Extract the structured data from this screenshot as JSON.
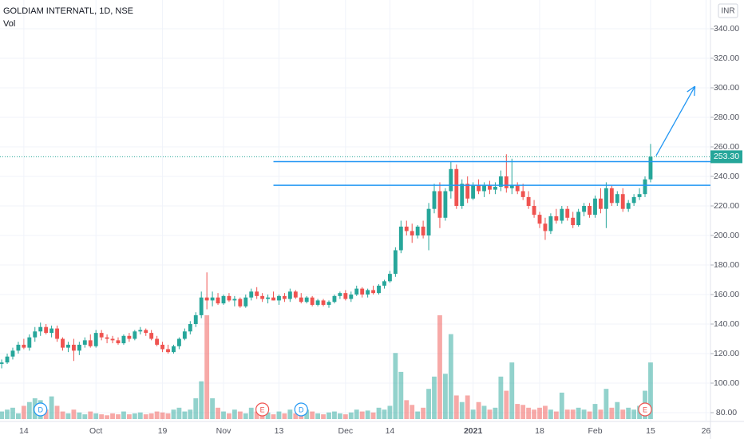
{
  "chart_data": {
    "type": "candlestick",
    "title": "GOLDIAM INTERNATL, 1D, NSE",
    "volume_label": "Vol",
    "currency": "INR",
    "up_color": "#26a69a",
    "down_color": "#ef5350",
    "grid": true,
    "ylim": [
      74,
      348
    ],
    "yticks": [
      {
        "value": 80,
        "label": "80.00"
      },
      {
        "value": 100,
        "label": "100.00"
      },
      {
        "value": 120,
        "label": "120.00"
      },
      {
        "value": 140,
        "label": "140.00"
      },
      {
        "value": 160,
        "label": "160.00"
      },
      {
        "value": 180,
        "label": "180.00"
      },
      {
        "value": 200,
        "label": "200.00"
      },
      {
        "value": 220,
        "label": "220.00"
      },
      {
        "value": 240,
        "label": "240.00"
      },
      {
        "value": 260,
        "label": "260.00"
      },
      {
        "value": 280,
        "label": "280.00"
      },
      {
        "value": 300,
        "label": "300.00"
      },
      {
        "value": 320,
        "label": "320.00"
      },
      {
        "value": 340,
        "label": "340.00"
      }
    ],
    "xlim": [
      -0.3,
      127.8
    ],
    "xticks": [
      {
        "value": 4,
        "label": "14"
      },
      {
        "value": 17,
        "label": "Oct"
      },
      {
        "value": 29,
        "label": "19"
      },
      {
        "value": 40,
        "label": "Nov"
      },
      {
        "value": 50,
        "label": "13"
      },
      {
        "value": 62,
        "label": "Dec"
      },
      {
        "value": 70,
        "label": "14"
      },
      {
        "value": 85,
        "label": "2021"
      },
      {
        "value": 97,
        "label": "18"
      },
      {
        "value": 107,
        "label": "Feb"
      },
      {
        "value": 117,
        "label": "15"
      },
      {
        "value": 127,
        "label": "26"
      }
    ],
    "open": [
      113,
      114,
      118,
      122,
      126,
      124,
      131,
      135,
      138,
      134,
      137,
      130,
      124,
      126,
      122,
      126,
      129,
      125,
      134,
      131,
      130,
      129,
      127,
      132,
      130,
      135,
      136,
      134,
      130,
      126,
      123,
      121,
      125,
      130,
      135,
      140,
      146,
      158,
      156,
      158,
      154,
      159,
      156,
      157,
      152,
      158,
      162,
      159,
      157,
      158,
      156,
      159,
      157,
      162,
      158,
      155,
      158,
      153,
      156,
      153,
      155,
      159,
      161,
      157,
      160,
      164,
      160,
      163,
      161,
      166,
      169,
      174,
      190,
      206,
      203,
      200,
      206,
      200,
      218,
      230,
      212,
      230,
      245,
      220,
      235,
      225,
      234,
      230,
      234,
      231,
      233,
      240,
      232,
      234,
      230,
      226,
      220,
      214,
      208,
      203,
      213,
      210,
      218,
      212,
      207,
      216,
      220,
      214,
      225,
      218,
      232,
      222,
      228,
      218,
      222,
      226,
      228,
      238
    ],
    "high": [
      116,
      120,
      124,
      128,
      130,
      133,
      138,
      141,
      140,
      139,
      139,
      131,
      128,
      130,
      128,
      131,
      133,
      136,
      136,
      133,
      132,
      131,
      133,
      134,
      136,
      138,
      137,
      136,
      132,
      128,
      126,
      126,
      131,
      137,
      142,
      148,
      162,
      175,
      162,
      161,
      160,
      161,
      159,
      158,
      160,
      164,
      165,
      161,
      160,
      162,
      160,
      161,
      164,
      163,
      161,
      159,
      159,
      157,
      157,
      156,
      160,
      162,
      163,
      162,
      166,
      165,
      164,
      166,
      167,
      170,
      176,
      192,
      210,
      210,
      208,
      207,
      210,
      222,
      235,
      236,
      232,
      250,
      248,
      238,
      240,
      236,
      238,
      236,
      237,
      236,
      244,
      255,
      252,
      236,
      235,
      230,
      224,
      216,
      212,
      215,
      218,
      220,
      220,
      216,
      218,
      222,
      222,
      227,
      232,
      236,
      234,
      230,
      232,
      224,
      228,
      232,
      240,
      262
    ],
    "low": [
      110,
      113,
      116,
      120,
      123,
      122,
      128,
      132,
      133,
      131,
      128,
      122,
      121,
      115,
      119,
      124,
      124,
      124,
      129,
      127,
      127,
      126,
      126,
      128,
      129,
      133,
      132,
      129,
      125,
      121,
      120,
      120,
      123,
      129,
      133,
      138,
      144,
      150,
      152,
      153,
      153,
      155,
      152,
      151,
      151,
      156,
      157,
      155,
      154,
      156,
      153,
      155,
      155,
      157,
      154,
      154,
      152,
      152,
      152,
      151,
      154,
      157,
      156,
      155,
      159,
      158,
      158,
      160,
      160,
      164,
      168,
      172,
      188,
      200,
      195,
      198,
      198,
      190,
      215,
      205,
      210,
      225,
      218,
      218,
      222,
      224,
      228,
      226,
      228,
      228,
      230,
      229,
      228,
      228,
      224,
      218,
      212,
      205,
      197,
      201,
      208,
      208,
      210,
      205,
      206,
      213,
      212,
      212,
      215,
      205,
      220,
      220,
      216,
      216,
      220,
      224,
      226,
      236
    ],
    "close": [
      114,
      118,
      122,
      126,
      124,
      131,
      135,
      138,
      134,
      137,
      130,
      124,
      126,
      122,
      126,
      129,
      125,
      134,
      131,
      130,
      129,
      127,
      132,
      130,
      135,
      136,
      134,
      130,
      126,
      123,
      121,
      125,
      130,
      135,
      140,
      146,
      158,
      156,
      158,
      154,
      159,
      156,
      157,
      152,
      158,
      162,
      159,
      157,
      158,
      156,
      159,
      157,
      162,
      158,
      155,
      158,
      153,
      156,
      153,
      155,
      159,
      161,
      157,
      160,
      164,
      160,
      163,
      161,
      166,
      169,
      174,
      190,
      206,
      203,
      200,
      206,
      200,
      218,
      230,
      212,
      230,
      245,
      220,
      235,
      225,
      234,
      230,
      234,
      231,
      233,
      240,
      232,
      234,
      230,
      226,
      220,
      214,
      208,
      203,
      213,
      210,
      218,
      212,
      207,
      216,
      220,
      214,
      225,
      218,
      232,
      222,
      228,
      218,
      222,
      226,
      228,
      238,
      253.3
    ],
    "volume": [
      8,
      10,
      12,
      6,
      14,
      18,
      22,
      20,
      10,
      24,
      14,
      8,
      6,
      10,
      7,
      5,
      8,
      6,
      5,
      4,
      6,
      5,
      8,
      5,
      6,
      7,
      5,
      6,
      8,
      7,
      6,
      10,
      12,
      8,
      10,
      22,
      40,
      110,
      22,
      12,
      8,
      6,
      10,
      8,
      6,
      12,
      8,
      6,
      7,
      5,
      8,
      6,
      10,
      6,
      5,
      10,
      8,
      6,
      5,
      7,
      8,
      6,
      5,
      7,
      10,
      8,
      9,
      7,
      12,
      10,
      14,
      70,
      50,
      20,
      15,
      8,
      12,
      32,
      45,
      110,
      48,
      90,
      25,
      18,
      25,
      10,
      18,
      14,
      10,
      12,
      45,
      30,
      60,
      16,
      15,
      12,
      10,
      12,
      14,
      10,
      8,
      28,
      10,
      10,
      12,
      10,
      8,
      16,
      10,
      32,
      12,
      18,
      10,
      12,
      10,
      14,
      30,
      60
    ],
    "last_price": {
      "value": 253.3,
      "label": "253.30"
    },
    "levels": [
      250,
      234
    ],
    "levels_start": 49,
    "arrow": {
      "from": [
        118,
        254
      ],
      "to": [
        125,
        301
      ]
    },
    "events": [
      {
        "label": "D",
        "x": 7,
        "color": "#2196f3"
      },
      {
        "label": "E",
        "x": 47,
        "color": "#ef5350"
      },
      {
        "label": "D",
        "x": 54,
        "color": "#2196f3"
      },
      {
        "label": "E",
        "x": 116,
        "color": "#ef5350"
      }
    ]
  }
}
